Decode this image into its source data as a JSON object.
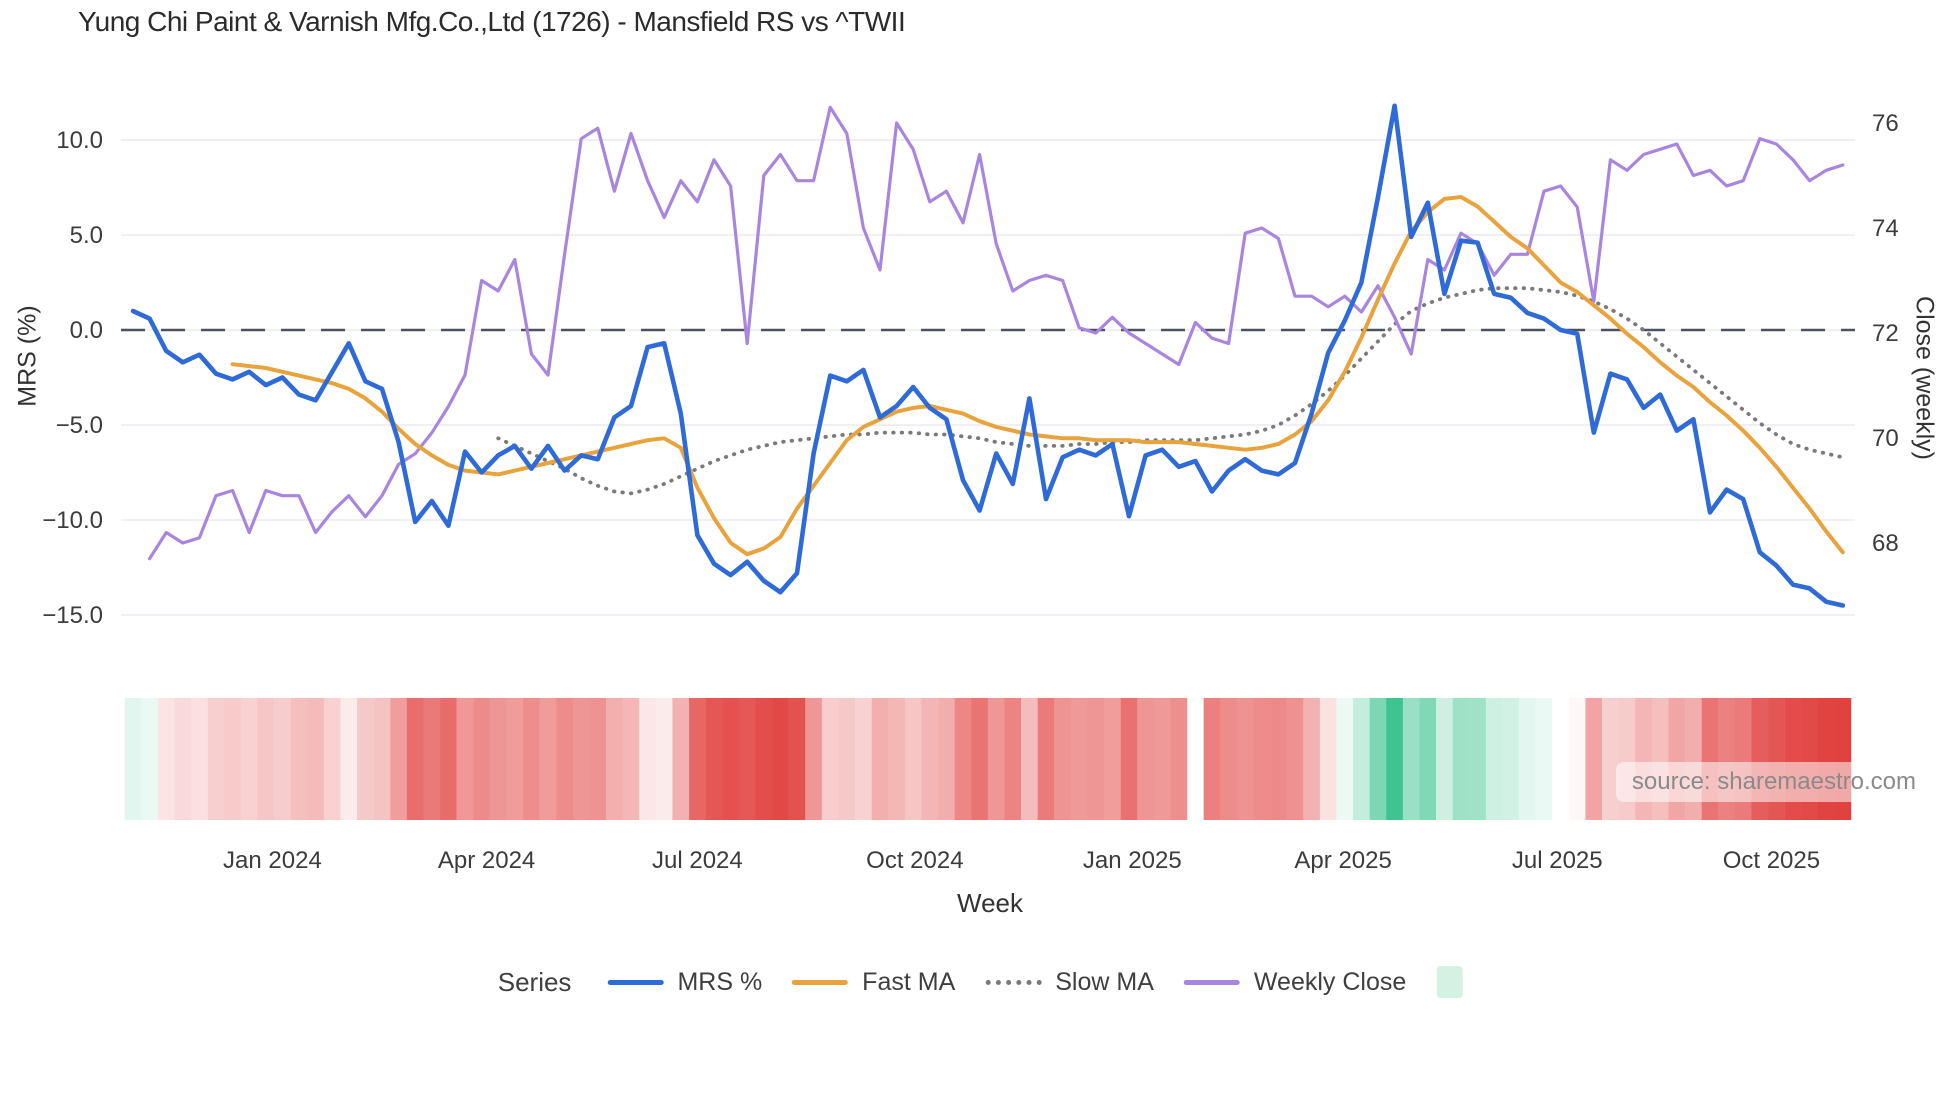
{
  "title": "Yung Chi Paint & Varnish Mfg.Co.,Ltd (1726) - Mansfield RS vs ^TWII",
  "watermark": "source: sharemaestro.com",
  "axes": {
    "left": {
      "title": "MRS (%)",
      "ticks": [
        10.0,
        5.0,
        0.0,
        -5.0,
        -10.0,
        -15.0
      ],
      "labels": [
        "10.0",
        "5.0",
        "0.0",
        "−5.0",
        "−10.0",
        "−15.0"
      ]
    },
    "right": {
      "title": "Close (weekly)",
      "ticks": [
        76,
        74,
        72,
        70,
        68
      ],
      "labels": [
        "76",
        "74",
        "72",
        "70",
        "68"
      ]
    },
    "x": {
      "title": "Week"
    }
  },
  "legend": {
    "title": "Series",
    "items": [
      {
        "label": "MRS %",
        "color": "#2e6bd8",
        "line_style": "solid"
      },
      {
        "label": "Fast MA",
        "color": "#e8a33c",
        "line_style": "solid"
      },
      {
        "label": "Slow MA",
        "color": "#7a7a7a",
        "line_style": "dotted"
      },
      {
        "label": "Weekly Close",
        "color": "#a886e0",
        "line_style": "solid"
      }
    ],
    "heat_swatch_color": "#d5f1e4"
  },
  "chart_data": {
    "type": "line",
    "title": "Yung Chi Paint & Varnish Mfg.Co.,Ltd (1726) - Mansfield RS vs ^TWII",
    "xlabel": "Week",
    "ylabel_left": "MRS (%)",
    "ylabel_right": "Close (weekly)",
    "ylim_left": [
      -15,
      10
    ],
    "ylim_right": [
      68,
      76
    ],
    "grid": "horizontal",
    "zero_line": {
      "value": 0.0,
      "axis": "left",
      "color": "#4b5260",
      "style": "dashed"
    },
    "x_unit": "week",
    "total_weeks": 104,
    "x_ticks": [
      {
        "week": 8.4,
        "label": "Jan 2024"
      },
      {
        "week": 21.3,
        "label": "Apr 2024"
      },
      {
        "week": 34.0,
        "label": "Jul 2024"
      },
      {
        "week": 47.1,
        "label": "Oct 2024"
      },
      {
        "week": 60.2,
        "label": "Jan 2025"
      },
      {
        "week": 72.9,
        "label": "Apr 2025"
      },
      {
        "week": 85.8,
        "label": "Jul 2025"
      },
      {
        "week": 98.7,
        "label": "Oct 2025"
      }
    ],
    "series": [
      {
        "name": "Slow MA",
        "axis": "left",
        "color": "#7a7a7a",
        "width": 3.8,
        "dash": "0.5 8",
        "start_week": 22,
        "values": [
          -5.7,
          -6.1,
          -6.5,
          -6.9,
          -7.3,
          -7.8,
          -8.2,
          -8.5,
          -8.6,
          -8.4,
          -8.1,
          -7.7,
          -7.3,
          -6.9,
          -6.6,
          -6.3,
          -6.1,
          -5.9,
          -5.8,
          -5.7,
          -5.6,
          -5.5,
          -5.5,
          -5.4,
          -5.4,
          -5.4,
          -5.5,
          -5.5,
          -5.6,
          -5.7,
          -5.9,
          -6.0,
          -6.1,
          -6.1,
          -6.1,
          -6.0,
          -6.0,
          -5.9,
          -5.9,
          -5.8,
          -5.8,
          -5.8,
          -5.8,
          -5.7,
          -5.6,
          -5.5,
          -5.3,
          -5.0,
          -4.5,
          -3.9,
          -3.2,
          -2.4,
          -1.5,
          -0.6,
          0.3,
          1.0,
          1.4,
          1.7,
          1.9,
          2.1,
          2.2,
          2.2,
          2.2,
          2.1,
          2.0,
          1.8,
          1.5,
          1.1,
          0.6,
          0.0,
          -0.7,
          -1.4,
          -2.1,
          -2.8,
          -3.5,
          -4.2,
          -4.9,
          -5.5,
          -6.0,
          -6.3,
          -6.5,
          -6.7
        ]
      },
      {
        "name": "Weekly Close",
        "axis": "right",
        "color": "#a886e0",
        "width": 3.2,
        "dash": null,
        "start_week": 1,
        "values": [
          67.7,
          68.2,
          68.0,
          68.1,
          68.9,
          69.0,
          68.2,
          69.0,
          68.9,
          68.9,
          68.2,
          68.6,
          68.9,
          68.5,
          68.9,
          69.5,
          69.7,
          70.1,
          70.6,
          71.2,
          73.0,
          72.8,
          73.4,
          71.6,
          71.2,
          73.5,
          75.7,
          75.9,
          74.7,
          75.8,
          74.9,
          74.2,
          74.9,
          74.5,
          75.3,
          74.8,
          71.8,
          75.0,
          75.4,
          74.9,
          74.9,
          76.3,
          75.8,
          74.0,
          73.2,
          76.0,
          75.5,
          74.5,
          74.7,
          74.1,
          75.4,
          73.7,
          72.8,
          73.0,
          73.1,
          73.0,
          72.1,
          72.0,
          72.3,
          72.0,
          71.8,
          71.6,
          71.4,
          72.2,
          71.9,
          71.8,
          73.9,
          74.0,
          73.8,
          72.7,
          72.7,
          72.5,
          72.7,
          72.4,
          72.9,
          72.3,
          71.6,
          73.4,
          73.2,
          73.9,
          73.7,
          73.1,
          73.5,
          73.5,
          74.7,
          74.8,
          74.4,
          72.6,
          75.3,
          75.1,
          75.4,
          75.5,
          75.6,
          75.0,
          75.1,
          74.8,
          74.9,
          75.7,
          75.6,
          75.3,
          74.9,
          75.1,
          75.2
        ]
      },
      {
        "name": "Fast MA",
        "axis": "left",
        "color": "#e8a33c",
        "width": 4,
        "dash": null,
        "start_week": 6,
        "values": [
          -1.8,
          -1.9,
          -2.0,
          -2.2,
          -2.4,
          -2.6,
          -2.8,
          -3.1,
          -3.6,
          -4.3,
          -5.2,
          -6.0,
          -6.6,
          -7.1,
          -7.4,
          -7.5,
          -7.6,
          -7.4,
          -7.2,
          -7.0,
          -6.8,
          -6.6,
          -6.4,
          -6.2,
          -6.0,
          -5.8,
          -5.7,
          -6.2,
          -8.3,
          -9.9,
          -11.2,
          -11.8,
          -11.5,
          -10.9,
          -9.4,
          -8.2,
          -7.0,
          -5.8,
          -5.1,
          -4.7,
          -4.3,
          -4.1,
          -4.0,
          -4.2,
          -4.4,
          -4.8,
          -5.1,
          -5.3,
          -5.5,
          -5.6,
          -5.7,
          -5.7,
          -5.8,
          -5.8,
          -5.8,
          -5.9,
          -5.9,
          -5.9,
          -6.0,
          -6.1,
          -6.2,
          -6.3,
          -6.2,
          -6.0,
          -5.5,
          -4.8,
          -3.7,
          -2.2,
          -0.4,
          1.6,
          3.5,
          5.2,
          6.2,
          6.9,
          7.0,
          6.5,
          5.7,
          4.9,
          4.3,
          3.4,
          2.5,
          2.0,
          1.3,
          0.6,
          -0.2,
          -0.9,
          -1.7,
          -2.4,
          -3.0,
          -3.8,
          -4.5,
          -5.3,
          -6.2,
          -7.2,
          -8.3,
          -9.4,
          -10.6,
          -11.7
        ]
      },
      {
        "name": "MRS %",
        "axis": "left",
        "color": "#2e6bd8",
        "width": 4.6,
        "dash": null,
        "start_week": 0,
        "values": [
          1.0,
          0.6,
          -1.1,
          -1.7,
          -1.3,
          -2.3,
          -2.6,
          -2.2,
          -2.9,
          -2.5,
          -3.4,
          -3.7,
          -2.2,
          -0.7,
          -2.7,
          -3.1,
          -5.9,
          -10.1,
          -9.0,
          -10.3,
          -6.4,
          -7.5,
          -6.6,
          -6.1,
          -7.3,
          -6.1,
          -7.4,
          -6.6,
          -6.8,
          -4.6,
          -4.0,
          -0.9,
          -0.7,
          -4.4,
          -10.8,
          -12.3,
          -12.9,
          -12.2,
          -13.2,
          -13.8,
          -12.8,
          -6.5,
          -2.4,
          -2.7,
          -2.1,
          -4.6,
          -4.0,
          -3.0,
          -4.1,
          -4.7,
          -7.9,
          -9.5,
          -6.5,
          -8.1,
          -3.6,
          -8.9,
          -6.7,
          -6.3,
          -6.6,
          -6.0,
          -9.8,
          -6.6,
          -6.3,
          -7.2,
          -6.9,
          -8.5,
          -7.4,
          -6.8,
          -7.4,
          -7.6,
          -7.0,
          -4.4,
          -1.2,
          0.5,
          2.5,
          7.0,
          11.8,
          4.9,
          6.7,
          1.9,
          4.7,
          4.6,
          1.9,
          1.7,
          0.9,
          0.6,
          0.0,
          -0.2,
          -5.4,
          -2.3,
          -2.6,
          -4.1,
          -3.4,
          -5.3,
          -4.7,
          -9.6,
          -8.4,
          -8.9,
          -11.7,
          -12.4,
          -13.4,
          -13.6,
          -14.3,
          -14.5
        ]
      }
    ],
    "heatmap": {
      "source_series": "MRS %",
      "strips": [
        [
          0,
          63
        ],
        [
          65,
          103
        ]
      ],
      "scale": {
        "positive": "#3ec490",
        "negative": "#e1413f",
        "max_abs_positive": 11.8,
        "max_abs_negative": 14.5
      }
    }
  }
}
